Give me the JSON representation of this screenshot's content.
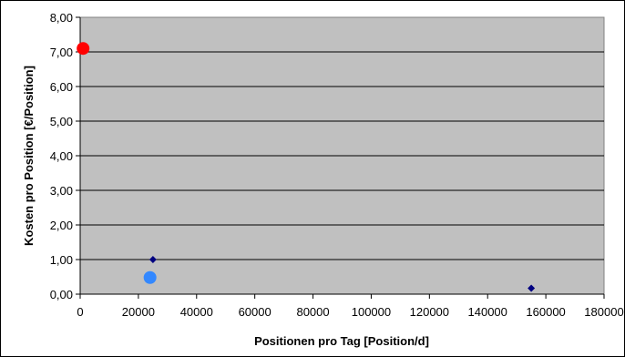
{
  "chart_data": {
    "type": "scatter",
    "title": "",
    "xlabel": "Positionen pro Tag [Position/d]",
    "ylabel": "Kosten pro Position [€/Position]",
    "xlim": [
      0,
      180000
    ],
    "ylim": [
      0,
      8
    ],
    "x_ticks": [
      "0",
      "20000",
      "40000",
      "60000",
      "80000",
      "100000",
      "120000",
      "140000",
      "160000",
      "180000"
    ],
    "y_ticks": [
      "0,00",
      "1,00",
      "2,00",
      "3,00",
      "4,00",
      "5,00",
      "6,00",
      "7,00",
      "8,00"
    ],
    "grid": "horizontal",
    "plot_background": "#c0c0c0",
    "series": [
      {
        "marker": "diamond",
        "color": "#000080",
        "points": [
          {
            "x": 25000,
            "y": 1.0
          },
          {
            "x": 155000,
            "y": 0.17
          }
        ]
      },
      {
        "marker": "circle",
        "color": "#ff0000",
        "points": [
          {
            "x": 1000,
            "y": 7.1
          }
        ]
      },
      {
        "marker": "circle",
        "color": "#3388ff",
        "points": [
          {
            "x": 24000,
            "y": 0.48
          }
        ]
      }
    ]
  }
}
